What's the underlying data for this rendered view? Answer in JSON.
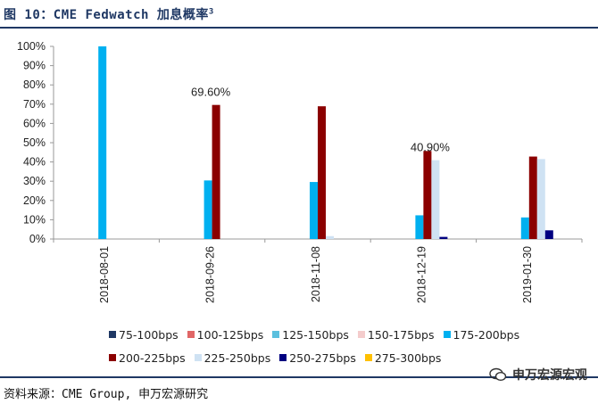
{
  "title": {
    "main": "图 10：CME Fedwatch 加息概率",
    "sup": "3"
  },
  "source": "资料来源：CME Group, 申万宏源研究",
  "watermark": "申万宏源宏观",
  "chart_data": {
    "type": "bar",
    "categories": [
      "2018-08-01",
      "2018-09-26",
      "2018-11-08",
      "2018-12-19",
      "2019-01-30"
    ],
    "ylim": [
      0,
      100
    ],
    "yticks": [
      "0%",
      "10%",
      "20%",
      "30%",
      "40%",
      "50%",
      "60%",
      "70%",
      "80%",
      "90%",
      "100%"
    ],
    "series": [
      {
        "name": "75-100bps",
        "color": "#1f3864",
        "values": [
          0,
          0,
          0,
          0,
          0
        ]
      },
      {
        "name": "100-125bps",
        "color": "#e06666",
        "values": [
          0,
          0,
          0,
          0,
          0
        ]
      },
      {
        "name": "125-150bps",
        "color": "#5bc0de",
        "values": [
          0,
          0,
          0,
          0,
          0
        ]
      },
      {
        "name": "150-175bps",
        "color": "#f4cccc",
        "values": [
          0,
          0,
          0,
          0,
          0
        ]
      },
      {
        "name": "175-200bps",
        "color": "#00b0f0",
        "values": [
          100,
          30.4,
          29.6,
          12.3,
          11.2
        ]
      },
      {
        "name": "200-225bps",
        "color": "#8b0000",
        "values": [
          0,
          69.6,
          68.9,
          45.7,
          42.8
        ]
      },
      {
        "name": "225-250bps",
        "color": "#cfe2f3",
        "values": [
          0,
          0,
          1.5,
          40.9,
          41.5
        ]
      },
      {
        "name": "250-275bps",
        "color": "#000080",
        "values": [
          0,
          0,
          0,
          1.1,
          4.5
        ]
      },
      {
        "name": "275-300bps",
        "color": "#ffc000",
        "values": [
          0,
          0,
          0,
          0,
          0
        ]
      }
    ],
    "annotations": [
      {
        "text": "69.60%",
        "category": "2018-09-26",
        "series": "200-225bps"
      },
      {
        "text": "40.90%",
        "category": "2018-12-19",
        "series": "225-250bps"
      }
    ],
    "legend_rows": [
      [
        "75-100bps",
        "100-125bps",
        "125-150bps",
        "150-175bps",
        "175-200bps"
      ],
      [
        "200-225bps",
        "225-250bps",
        "250-275bps",
        "275-300bps"
      ]
    ]
  }
}
